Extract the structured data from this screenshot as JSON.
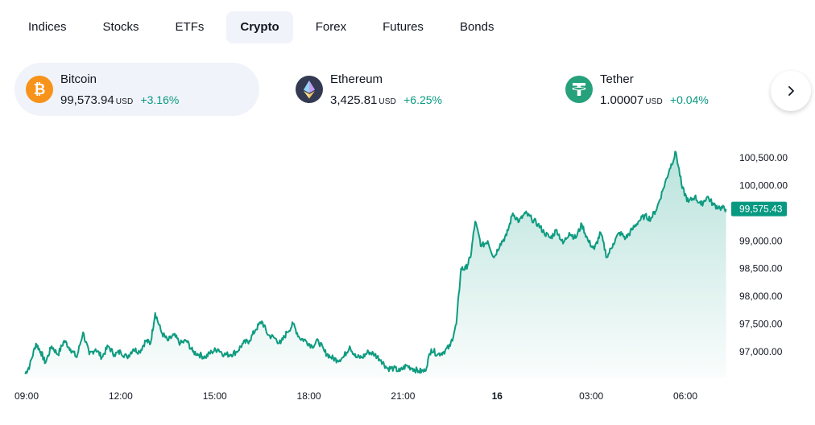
{
  "tabs": [
    {
      "label": "Indices",
      "active": false
    },
    {
      "label": "Stocks",
      "active": false
    },
    {
      "label": "ETFs",
      "active": false
    },
    {
      "label": "Crypto",
      "active": true
    },
    {
      "label": "Forex",
      "active": false
    },
    {
      "label": "Futures",
      "active": false
    },
    {
      "label": "Bonds",
      "active": false
    }
  ],
  "cards": [
    {
      "name": "Bitcoin",
      "price": "99,573.94",
      "currency": "USD",
      "change": "+3.16%",
      "icon": "bitcoin-icon",
      "color": "#f7931a",
      "active": true
    },
    {
      "name": "Ethereum",
      "price": "3,425.81",
      "currency": "USD",
      "change": "+6.25%",
      "icon": "ethereum-icon",
      "color": "#343a52",
      "active": false
    },
    {
      "name": "Tether",
      "price": "1.00007",
      "currency": "USD",
      "change": "+0.04%",
      "icon": "tether-icon",
      "color": "#26a17b",
      "active": false
    }
  ],
  "next_button": {
    "icon": "chevron-right-icon"
  },
  "colors": {
    "accent": "#089981",
    "line": "#0f9b80",
    "positive": "#089981"
  },
  "chart_data": {
    "type": "area",
    "title": "",
    "xlabel": "",
    "ylabel": "",
    "x_ticks": [
      "09:00",
      "12:00",
      "15:00",
      "18:00",
      "21:00",
      "16",
      "03:00",
      "06:00"
    ],
    "y_ticks": [
      "100,500.00",
      "100,000.00",
      "99,000.00",
      "98,500.00",
      "98,000.00",
      "97,500.00",
      "97,000.00"
    ],
    "y_tick_values": [
      100500,
      100000,
      99000,
      98500,
      98000,
      97500,
      97000
    ],
    "ylim": [
      96500,
      100750
    ],
    "x_range_hours": [
      8.95,
      31.3
    ],
    "last_price": "99,575.43",
    "last_value": 99575.43,
    "series": [
      {
        "hours": [
          8.95,
          9.1,
          9.3,
          9.45,
          9.6,
          9.8,
          10.0,
          10.2,
          10.4,
          10.6,
          10.8,
          11.0,
          11.2,
          11.4,
          11.6,
          11.8,
          12.0,
          12.2,
          12.4,
          12.6,
          12.8,
          12.95,
          13.1,
          13.3,
          13.5,
          13.7,
          13.9,
          14.1,
          14.3,
          14.5,
          14.7,
          14.9,
          15.1,
          15.3,
          15.5,
          15.7,
          15.9,
          16.1,
          16.3,
          16.5,
          16.7,
          16.9,
          17.1,
          17.3,
          17.5,
          17.7,
          17.9,
          18.1,
          18.3,
          18.5,
          18.7,
          18.9,
          19.1,
          19.3,
          19.5,
          19.7,
          19.9,
          20.1,
          20.3,
          20.5,
          20.7,
          20.9,
          21.1,
          21.3,
          21.5,
          21.7,
          21.9,
          22.1,
          22.3,
          22.5,
          22.7,
          22.85,
          23.0,
          23.15,
          23.3,
          23.5,
          23.7,
          23.9,
          24.1,
          24.3,
          24.5,
          24.7,
          24.9,
          25.1,
          25.3,
          25.5,
          25.7,
          25.9,
          26.1,
          26.3,
          26.5,
          26.7,
          26.9,
          27.1,
          27.3,
          27.5,
          27.7,
          27.9,
          28.1,
          28.3,
          28.5,
          28.7,
          28.9,
          29.1,
          29.3,
          29.5,
          29.7,
          29.9,
          30.1,
          30.3,
          30.5,
          30.7,
          30.9,
          31.1,
          31.3
        ],
        "values": [
          96600,
          96750,
          97150,
          97000,
          96800,
          97100,
          96950,
          97200,
          97050,
          96900,
          97350,
          96950,
          97050,
          96900,
          97100,
          96950,
          97000,
          96900,
          97050,
          97000,
          97200,
          97150,
          97700,
          97350,
          97200,
          97300,
          97150,
          97200,
          97000,
          96950,
          96900,
          97000,
          97050,
          96950,
          96950,
          97000,
          97150,
          97200,
          97400,
          97550,
          97300,
          97250,
          97150,
          97350,
          97500,
          97250,
          97200,
          97100,
          97200,
          97000,
          96900,
          96850,
          96900,
          97100,
          96900,
          96900,
          97000,
          96950,
          96850,
          96700,
          96700,
          96650,
          96750,
          96700,
          96650,
          96650,
          97050,
          96950,
          97000,
          97100,
          97500,
          98500,
          98500,
          98700,
          99350,
          98900,
          99000,
          98700,
          98950,
          99100,
          99500,
          99350,
          99500,
          99400,
          99300,
          99150,
          99050,
          99200,
          98950,
          99150,
          99050,
          99300,
          99000,
          98850,
          99150,
          98700,
          98950,
          99150,
          99050,
          99200,
          99350,
          99450,
          99400,
          99600,
          99950,
          100300,
          100600,
          99950,
          99700,
          99800,
          99650,
          99800,
          99650,
          99600,
          99575
        ]
      }
    ]
  }
}
